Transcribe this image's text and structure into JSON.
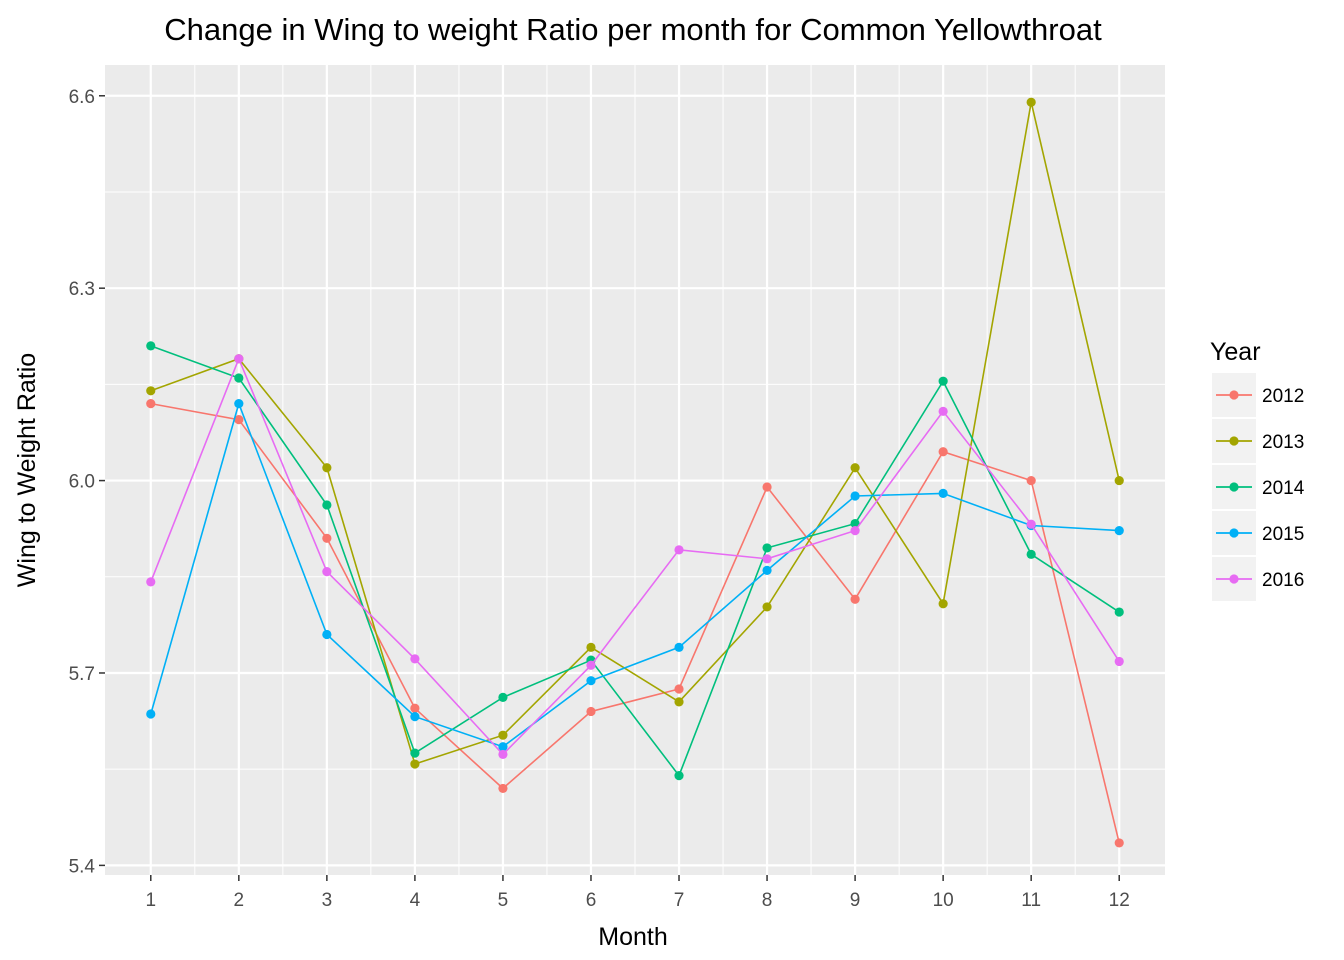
{
  "chart_data": {
    "type": "line",
    "title": "Change in Wing to weight Ratio per month for Common Yellowthroat",
    "xlabel": "Month",
    "ylabel": "Wing to Weight Ratio",
    "x": [
      1,
      2,
      3,
      4,
      5,
      6,
      7,
      8,
      9,
      10,
      11,
      12
    ],
    "x_tick_labels": [
      "1",
      "2",
      "3",
      "4",
      "5",
      "6",
      "7",
      "8",
      "9",
      "10",
      "11",
      "12"
    ],
    "y_ticks": [
      5.4,
      5.7,
      6.0,
      6.3,
      6.6
    ],
    "y_tick_labels": [
      "5.4",
      "5.7",
      "6.0",
      "6.3",
      "6.6"
    ],
    "xlim": [
      0.48,
      12.52
    ],
    "ylim": [
      5.385,
      6.648
    ],
    "grid": true,
    "legend": {
      "title": "Year",
      "position": "right"
    },
    "series": [
      {
        "name": "2012",
        "color": "#F8766D",
        "values": [
          6.12,
          6.095,
          5.91,
          5.645,
          5.52,
          5.64,
          5.675,
          5.99,
          5.815,
          6.045,
          6.0,
          5.435
        ]
      },
      {
        "name": "2013",
        "color": "#A3A500",
        "values": [
          6.14,
          6.19,
          6.02,
          5.558,
          5.603,
          5.74,
          5.655,
          5.803,
          6.02,
          5.808,
          6.59,
          6.0
        ]
      },
      {
        "name": "2014",
        "color": "#00BF7D",
        "values": [
          6.21,
          6.16,
          5.962,
          5.575,
          5.662,
          5.72,
          5.54,
          5.895,
          5.933,
          6.155,
          5.885,
          5.795
        ]
      },
      {
        "name": "2015",
        "color": "#00B0F6",
        "values": [
          5.636,
          6.12,
          5.76,
          5.632,
          5.585,
          5.688,
          5.74,
          5.86,
          5.976,
          5.98,
          5.93,
          5.922
        ]
      },
      {
        "name": "2016",
        "color": "#E76BF3",
        "values": [
          5.842,
          6.19,
          5.858,
          5.722,
          5.573,
          5.712,
          5.892,
          5.878,
          5.922,
          6.108,
          5.932,
          5.718
        ]
      }
    ]
  }
}
